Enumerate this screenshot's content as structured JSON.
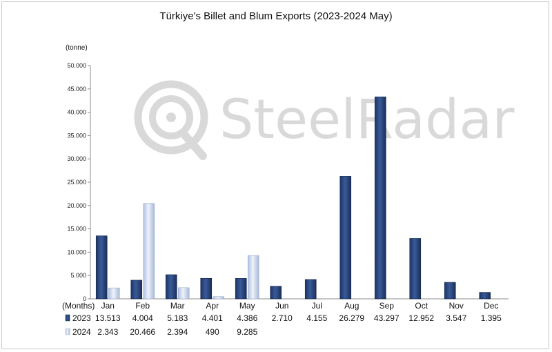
{
  "chart_data": {
    "type": "bar",
    "title": "Türkiye's Billet and Blum Exports (2023-2024 May)",
    "ylabel": "(tonne)",
    "xlabel": "(Months)",
    "ylim": [
      0,
      50000
    ],
    "yticks": [
      "0",
      "5.000",
      "10.000",
      "15.000",
      "20.000",
      "25.000",
      "30.000",
      "35.000",
      "40.000",
      "45.000",
      "50.000"
    ],
    "categories": [
      "Jan",
      "Feb",
      "Mar",
      "Apr",
      "May",
      "Jun",
      "Jul",
      "Aug",
      "Sep",
      "Oct",
      "Nov",
      "Dec"
    ],
    "series": [
      {
        "name": "2023",
        "color": "#2a4478",
        "values": [
          13513,
          4004,
          5183,
          4401,
          4386,
          2710,
          4155,
          26279,
          43297,
          12952,
          3547,
          1395
        ],
        "labels": [
          "13.513",
          "4.004",
          "5.183",
          "4.401",
          "4.386",
          "2.710",
          "4.155",
          "26.279",
          "43.297",
          "12.952",
          "3.547",
          "1.395"
        ]
      },
      {
        "name": "2024",
        "color": "#c6d3ea",
        "values": [
          2343,
          20466,
          2394,
          490,
          9285,
          null,
          null,
          null,
          null,
          null,
          null,
          null
        ],
        "labels": [
          "2.343",
          "20.466",
          "2.394",
          "490",
          "9.285",
          "",
          "",
          "",
          "",
          "",
          "",
          ""
        ]
      }
    ],
    "grid": false,
    "legend": "data-table-below"
  },
  "watermark": {
    "text": "SteelRadar",
    "icon": "radar-logo-icon"
  }
}
